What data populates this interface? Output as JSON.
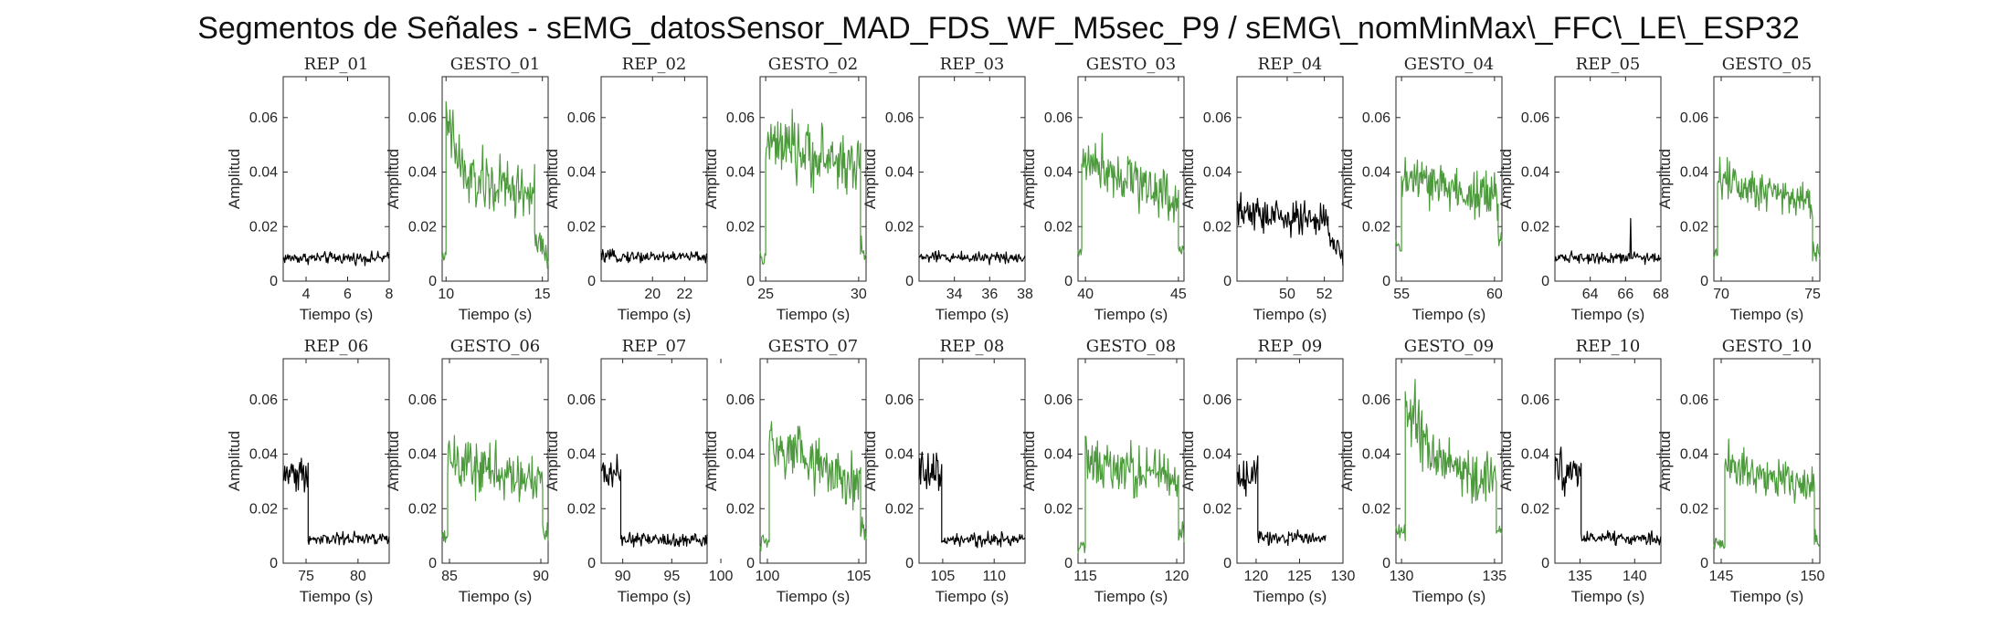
{
  "figure": {
    "title": "Segmentos de Señales - sEMG_datosSensor_MAD_FDS_WF_M5sec_P9 / sEMG\\_nomMinMax\\_FFC\\_LE\\_ESP32"
  },
  "colors": {
    "rep": "#000000",
    "gesto": "#4c9a3c",
    "axis": "#262626"
  },
  "chart_data": [
    {
      "type": "line",
      "title": "REP_01",
      "xlabel": "Tiempo (s)",
      "ylabel": "Amplitud",
      "xlim": [
        2.9,
        8
      ],
      "ylim": [
        0,
        0.075
      ],
      "xticks": [
        4,
        6,
        8
      ],
      "yticks": [
        0,
        0.02,
        0.04,
        0.06
      ],
      "series": [
        {
          "x": [
            2.9,
            8
          ],
          "segments": [
            {
              "t": [
                2.9,
                8
              ],
              "level": 0.0085,
              "noise": 0.0013
            }
          ]
        }
      ],
      "color": "rep"
    },
    {
      "type": "line",
      "title": "GESTO_01",
      "xlabel": "Tiempo (s)",
      "ylabel": "Amplitud",
      "xlim": [
        9.8,
        15.3
      ],
      "ylim": [
        0,
        0.075
      ],
      "xticks": [
        10,
        15
      ],
      "yticks": [
        0,
        0.02,
        0.04,
        0.06
      ],
      "series": [
        {
          "segments": [
            {
              "t": [
                9.8,
                10.0
              ],
              "level": 0.009,
              "noise": 0.001
            },
            {
              "t": [
                10.0,
                11.0
              ],
              "level": 0.058,
              "noise": 0.008,
              "end": 0.038
            },
            {
              "t": [
                11.0,
                14.6
              ],
              "level": 0.037,
              "noise": 0.007,
              "end": 0.032
            },
            {
              "t": [
                14.6,
                15.3
              ],
              "level": 0.015,
              "noise": 0.004,
              "end": 0.008
            }
          ]
        }
      ],
      "color": "gesto"
    },
    {
      "type": "line",
      "title": "REP_02",
      "xlabel": "Tiempo (s)",
      "ylabel": "Amplitud",
      "xlim": [
        16.8,
        23.4
      ],
      "ylim": [
        0,
        0.075
      ],
      "xticks": [
        20,
        22
      ],
      "yticks": [
        0,
        0.02,
        0.04,
        0.06
      ],
      "series": [
        {
          "segments": [
            {
              "t": [
                16.8,
                23.4
              ],
              "level": 0.009,
              "noise": 0.0013
            }
          ]
        }
      ],
      "color": "rep"
    },
    {
      "type": "line",
      "title": "GESTO_02",
      "xlabel": "Tiempo (s)",
      "ylabel": "Amplitud",
      "xlim": [
        24.7,
        30.4
      ],
      "ylim": [
        0,
        0.075
      ],
      "xticks": [
        25,
        30
      ],
      "yticks": [
        0,
        0.02,
        0.04,
        0.06
      ],
      "series": [
        {
          "segments": [
            {
              "t": [
                24.7,
                25.0
              ],
              "level": 0.008,
              "noise": 0.002
            },
            {
              "t": [
                25.0,
                30.1
              ],
              "level": 0.05,
              "noise": 0.007,
              "end": 0.042
            },
            {
              "t": [
                30.1,
                30.4
              ],
              "level": 0.012,
              "noise": 0.003
            }
          ]
        }
      ],
      "color": "gesto"
    },
    {
      "type": "line",
      "title": "REP_03",
      "xlabel": "Tiempo (s)",
      "ylabel": "Amplitud",
      "xlim": [
        32,
        38
      ],
      "ylim": [
        0,
        0.075
      ],
      "xticks": [
        34,
        36,
        38
      ],
      "yticks": [
        0,
        0.02,
        0.04,
        0.06
      ],
      "series": [
        {
          "segments": [
            {
              "t": [
                32,
                38
              ],
              "level": 0.0088,
              "noise": 0.0013
            }
          ]
        }
      ],
      "color": "rep"
    },
    {
      "type": "line",
      "title": "GESTO_03",
      "xlabel": "Tiempo (s)",
      "ylabel": "Amplitud",
      "xlim": [
        39.6,
        45.3
      ],
      "ylim": [
        0,
        0.075
      ],
      "xticks": [
        40,
        45
      ],
      "yticks": [
        0,
        0.02,
        0.04,
        0.06
      ],
      "series": [
        {
          "segments": [
            {
              "t": [
                39.6,
                39.8
              ],
              "level": 0.01,
              "noise": 0.002
            },
            {
              "t": [
                39.8,
                45.0
              ],
              "level": 0.046,
              "noise": 0.006,
              "end": 0.03
            },
            {
              "t": [
                45.0,
                45.3
              ],
              "level": 0.012,
              "noise": 0.003
            }
          ]
        }
      ],
      "color": "gesto"
    },
    {
      "type": "line",
      "title": "REP_04",
      "xlabel": "Tiempo (s)",
      "ylabel": "Amplitud",
      "xlim": [
        47.3,
        53
      ],
      "ylim": [
        0,
        0.075
      ],
      "xticks": [
        50,
        52
      ],
      "yticks": [
        0,
        0.02,
        0.04,
        0.06
      ],
      "series": [
        {
          "segments": [
            {
              "t": [
                47.3,
                52.2
              ],
              "level": 0.025,
              "noise": 0.004,
              "end": 0.022
            },
            {
              "t": [
                52.2,
                53
              ],
              "level": 0.016,
              "noise": 0.003,
              "end": 0.009
            }
          ]
        }
      ],
      "color": "rep"
    },
    {
      "type": "line",
      "title": "GESTO_04",
      "xlabel": "Tiempo (s)",
      "ylabel": "Amplitud",
      "xlim": [
        54.7,
        60.4
      ],
      "ylim": [
        0,
        0.075
      ],
      "xticks": [
        55,
        60
      ],
      "yticks": [
        0,
        0.02,
        0.04,
        0.06
      ],
      "series": [
        {
          "segments": [
            {
              "t": [
                54.7,
                55.0
              ],
              "level": 0.012,
              "noise": 0.002
            },
            {
              "t": [
                55.0,
                60.2
              ],
              "level": 0.038,
              "noise": 0.006,
              "end": 0.03
            },
            {
              "t": [
                60.2,
                60.4
              ],
              "level": 0.015,
              "noise": 0.003
            }
          ]
        }
      ],
      "color": "gesto"
    },
    {
      "type": "line",
      "title": "REP_05",
      "xlabel": "Tiempo (s)",
      "ylabel": "Amplitud",
      "xlim": [
        62,
        68
      ],
      "ylim": [
        0,
        0.075
      ],
      "xticks": [
        64,
        66,
        68
      ],
      "yticks": [
        0,
        0.02,
        0.04,
        0.06
      ],
      "series": [
        {
          "segments": [
            {
              "t": [
                62,
                68
              ],
              "level": 0.0088,
              "noise": 0.0013
            }
          ],
          "spike": {
            "t": 66.3,
            "value": 0.023
          }
        }
      ],
      "color": "rep"
    },
    {
      "type": "line",
      "title": "GESTO_05",
      "xlabel": "Tiempo (s)",
      "ylabel": "Amplitud",
      "xlim": [
        69.6,
        75.4
      ],
      "ylim": [
        0,
        0.075
      ],
      "xticks": [
        70,
        75
      ],
      "yticks": [
        0,
        0.02,
        0.04,
        0.06
      ],
      "series": [
        {
          "segments": [
            {
              "t": [
                69.6,
                69.8
              ],
              "level": 0.01,
              "noise": 0.002
            },
            {
              "t": [
                69.8,
                75.0
              ],
              "level": 0.038,
              "noise": 0.005,
              "end": 0.03
            },
            {
              "t": [
                75.0,
                75.4
              ],
              "level": 0.01,
              "noise": 0.003
            }
          ]
        }
      ],
      "color": "gesto"
    },
    {
      "type": "line",
      "title": "REP_06",
      "xlabel": "Tiempo (s)",
      "ylabel": "Amplitud",
      "xlim": [
        72.8,
        83
      ],
      "ylim": [
        0,
        0.075
      ],
      "xticks": [
        75,
        80
      ],
      "yticks": [
        0,
        0.02,
        0.04,
        0.06
      ],
      "series": [
        {
          "segments": [
            {
              "t": [
                72.8,
                75.2
              ],
              "level": 0.033,
              "noise": 0.004
            },
            {
              "t": [
                75.2,
                83
              ],
              "level": 0.009,
              "noise": 0.0015
            }
          ]
        }
      ],
      "color": "rep"
    },
    {
      "type": "line",
      "title": "GESTO_06",
      "xlabel": "Tiempo (s)",
      "ylabel": "Amplitud",
      "xlim": [
        84.6,
        90.4
      ],
      "ylim": [
        0,
        0.075
      ],
      "xticks": [
        85,
        90
      ],
      "yticks": [
        0,
        0.02,
        0.04,
        0.06
      ],
      "series": [
        {
          "segments": [
            {
              "t": [
                84.6,
                84.9
              ],
              "level": 0.01,
              "noise": 0.002
            },
            {
              "t": [
                84.9,
                90.1
              ],
              "level": 0.037,
              "noise": 0.006,
              "end": 0.03
            },
            {
              "t": [
                90.1,
                90.4
              ],
              "level": 0.012,
              "noise": 0.003
            }
          ]
        }
      ],
      "color": "gesto"
    },
    {
      "type": "line",
      "title": "REP_07",
      "xlabel": "Tiempo (s)",
      "ylabel": "Amplitud",
      "xlim": [
        87.8,
        98.6
      ],
      "ylim": [
        0,
        0.075
      ],
      "xticks": [
        90,
        95,
        100
      ],
      "yticks": [
        0,
        0.02,
        0.04,
        0.06
      ],
      "series": [
        {
          "segments": [
            {
              "t": [
                87.8,
                89.8
              ],
              "level": 0.033,
              "noise": 0.004
            },
            {
              "t": [
                89.8,
                98.6
              ],
              "level": 0.0085,
              "noise": 0.0015
            }
          ]
        }
      ],
      "color": "rep"
    },
    {
      "type": "line",
      "title": "GESTO_07",
      "xlabel": "Tiempo (s)",
      "ylabel": "Amplitud",
      "xlim": [
        99.6,
        105.4
      ],
      "ylim": [
        0,
        0.075
      ],
      "xticks": [
        100,
        105
      ],
      "yticks": [
        0,
        0.02,
        0.04,
        0.06
      ],
      "series": [
        {
          "segments": [
            {
              "t": [
                99.6,
                100.1
              ],
              "level": 0.008,
              "noise": 0.002
            },
            {
              "t": [
                100.1,
                105.1
              ],
              "level": 0.042,
              "noise": 0.007,
              "end": 0.03
            },
            {
              "t": [
                105.1,
                105.4
              ],
              "level": 0.012,
              "noise": 0.003
            }
          ]
        }
      ],
      "color": "gesto"
    },
    {
      "type": "line",
      "title": "REP_08",
      "xlabel": "Tiempo (s)",
      "ylabel": "Amplitud",
      "xlim": [
        102.7,
        113
      ],
      "ylim": [
        0,
        0.075
      ],
      "xticks": [
        105,
        110
      ],
      "yticks": [
        0,
        0.02,
        0.04,
        0.06
      ],
      "series": [
        {
          "segments": [
            {
              "t": [
                102.7,
                104.9
              ],
              "level": 0.033,
              "noise": 0.005
            },
            {
              "t": [
                104.9,
                113
              ],
              "level": 0.0085,
              "noise": 0.0015
            }
          ]
        }
      ],
      "color": "rep"
    },
    {
      "type": "line",
      "title": "GESTO_08",
      "xlabel": "Tiempo (s)",
      "ylabel": "Amplitud",
      "xlim": [
        114.6,
        120.4
      ],
      "ylim": [
        0,
        0.075
      ],
      "xticks": [
        115,
        120
      ],
      "yticks": [
        0,
        0.02,
        0.04,
        0.06
      ],
      "series": [
        {
          "segments": [
            {
              "t": [
                114.6,
                115.0
              ],
              "level": 0.007,
              "noise": 0.002
            },
            {
              "t": [
                115.0,
                120.1
              ],
              "level": 0.038,
              "noise": 0.006,
              "end": 0.03
            },
            {
              "t": [
                120.1,
                120.4
              ],
              "level": 0.01,
              "noise": 0.003
            }
          ]
        }
      ],
      "color": "gesto"
    },
    {
      "type": "line",
      "title": "REP_09",
      "xlabel": "Tiempo (s)",
      "ylabel": "Amplitud",
      "xlim": [
        117.8,
        130
      ],
      "ylim": [
        0,
        0.075
      ],
      "xticks": [
        120,
        125,
        130
      ],
      "yticks": [
        0,
        0.02,
        0.04,
        0.06
      ],
      "series": [
        {
          "segments": [
            {
              "t": [
                117.8,
                120.2
              ],
              "level": 0.032,
              "noise": 0.004
            },
            {
              "t": [
                120.2,
                128
              ],
              "level": 0.009,
              "noise": 0.0015
            }
          ]
        }
      ],
      "color": "rep"
    },
    {
      "type": "line",
      "title": "GESTO_09",
      "xlabel": "Tiempo (s)",
      "ylabel": "Amplitud",
      "xlim": [
        129.7,
        135.4
      ],
      "ylim": [
        0,
        0.075
      ],
      "xticks": [
        130,
        135
      ],
      "yticks": [
        0,
        0.02,
        0.04,
        0.06
      ],
      "series": [
        {
          "segments": [
            {
              "t": [
                129.7,
                130.2
              ],
              "level": 0.012,
              "noise": 0.002
            },
            {
              "t": [
                130.2,
                131.3
              ],
              "level": 0.058,
              "noise": 0.008,
              "end": 0.045
            },
            {
              "t": [
                131.3,
                135.1
              ],
              "level": 0.04,
              "noise": 0.007,
              "end": 0.03
            },
            {
              "t": [
                135.1,
                135.4
              ],
              "level": 0.012,
              "noise": 0.003
            }
          ]
        }
      ],
      "color": "gesto"
    },
    {
      "type": "line",
      "title": "REP_10",
      "xlabel": "Tiempo (s)",
      "ylabel": "Amplitud",
      "xlim": [
        132.7,
        142.4
      ],
      "ylim": [
        0,
        0.075
      ],
      "xticks": [
        135,
        140
      ],
      "yticks": [
        0,
        0.02,
        0.04,
        0.06
      ],
      "series": [
        {
          "segments": [
            {
              "t": [
                132.7,
                135.1
              ],
              "level": 0.033,
              "noise": 0.005
            },
            {
              "t": [
                135.1,
                142.4
              ],
              "level": 0.009,
              "noise": 0.0015
            }
          ]
        }
      ],
      "color": "rep"
    },
    {
      "type": "line",
      "title": "GESTO_10",
      "xlabel": "Tiempo (s)",
      "ylabel": "Amplitud",
      "xlim": [
        144.6,
        150.4
      ],
      "ylim": [
        0,
        0.075
      ],
      "xticks": [
        145,
        150
      ],
      "yticks": [
        0,
        0.02,
        0.04,
        0.06
      ],
      "series": [
        {
          "segments": [
            {
              "t": [
                144.6,
                145.2
              ],
              "level": 0.007,
              "noise": 0.002
            },
            {
              "t": [
                145.2,
                150.1
              ],
              "level": 0.036,
              "noise": 0.005,
              "end": 0.028
            },
            {
              "t": [
                150.1,
                150.4
              ],
              "level": 0.008,
              "noise": 0.003
            }
          ]
        }
      ],
      "color": "gesto"
    }
  ]
}
